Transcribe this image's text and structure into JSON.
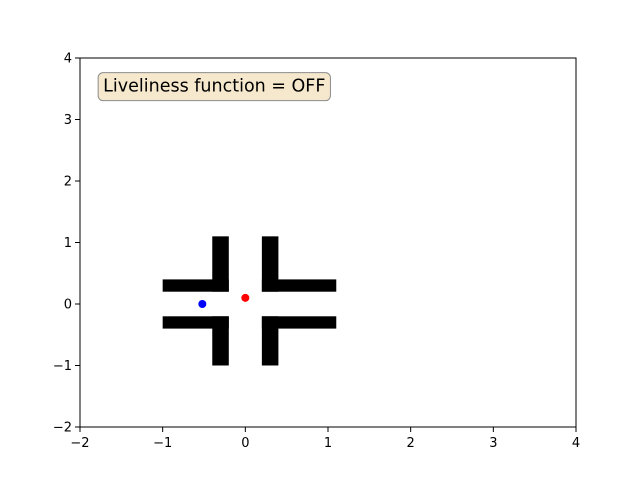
{
  "chart_data": {
    "type": "scatter",
    "title": "",
    "xlabel": "",
    "ylabel": "",
    "xlim": [
      -2,
      4
    ],
    "ylim": [
      -2,
      4
    ],
    "grid": false,
    "x_ticks": [
      -2,
      -1,
      0,
      1,
      2,
      3,
      4
    ],
    "y_ticks": [
      -2,
      -1,
      0,
      1,
      2,
      3,
      4
    ],
    "x_tick_labels": [
      "−2",
      "−1",
      "0",
      "1",
      "2",
      "3",
      "4"
    ],
    "y_tick_labels": [
      "−2",
      "−1",
      "0",
      "1",
      "2",
      "3",
      "4"
    ],
    "annotation": {
      "text": "Liveliness function = OFF",
      "x": -1.72,
      "y": 3.55,
      "box_face": "#f5e8cc",
      "box_edge": "#8c8c8c"
    },
    "obstacles": {
      "color": "#000000",
      "rects": [
        {
          "x0": -1.0,
          "x1": -0.2,
          "y0": 0.2,
          "y1": 0.4
        },
        {
          "x0": -0.4,
          "x1": -0.2,
          "y0": 0.2,
          "y1": 1.1
        },
        {
          "x0": 0.2,
          "x1": 1.1,
          "y0": 0.2,
          "y1": 0.4
        },
        {
          "x0": 0.2,
          "x1": 0.4,
          "y0": 0.2,
          "y1": 1.1
        },
        {
          "x0": -1.0,
          "x1": -0.2,
          "y0": -0.4,
          "y1": -0.2
        },
        {
          "x0": -0.4,
          "x1": -0.2,
          "y0": -1.0,
          "y1": -0.2
        },
        {
          "x0": 0.2,
          "x1": 1.1,
          "y0": -0.4,
          "y1": -0.2
        },
        {
          "x0": 0.2,
          "x1": 0.4,
          "y0": -1.0,
          "y1": -0.2
        }
      ]
    },
    "points": [
      {
        "x": -0.52,
        "y": 0.0,
        "color": "#0000ff"
      },
      {
        "x": 0.0,
        "y": 0.1,
        "color": "#ff0000"
      }
    ]
  }
}
